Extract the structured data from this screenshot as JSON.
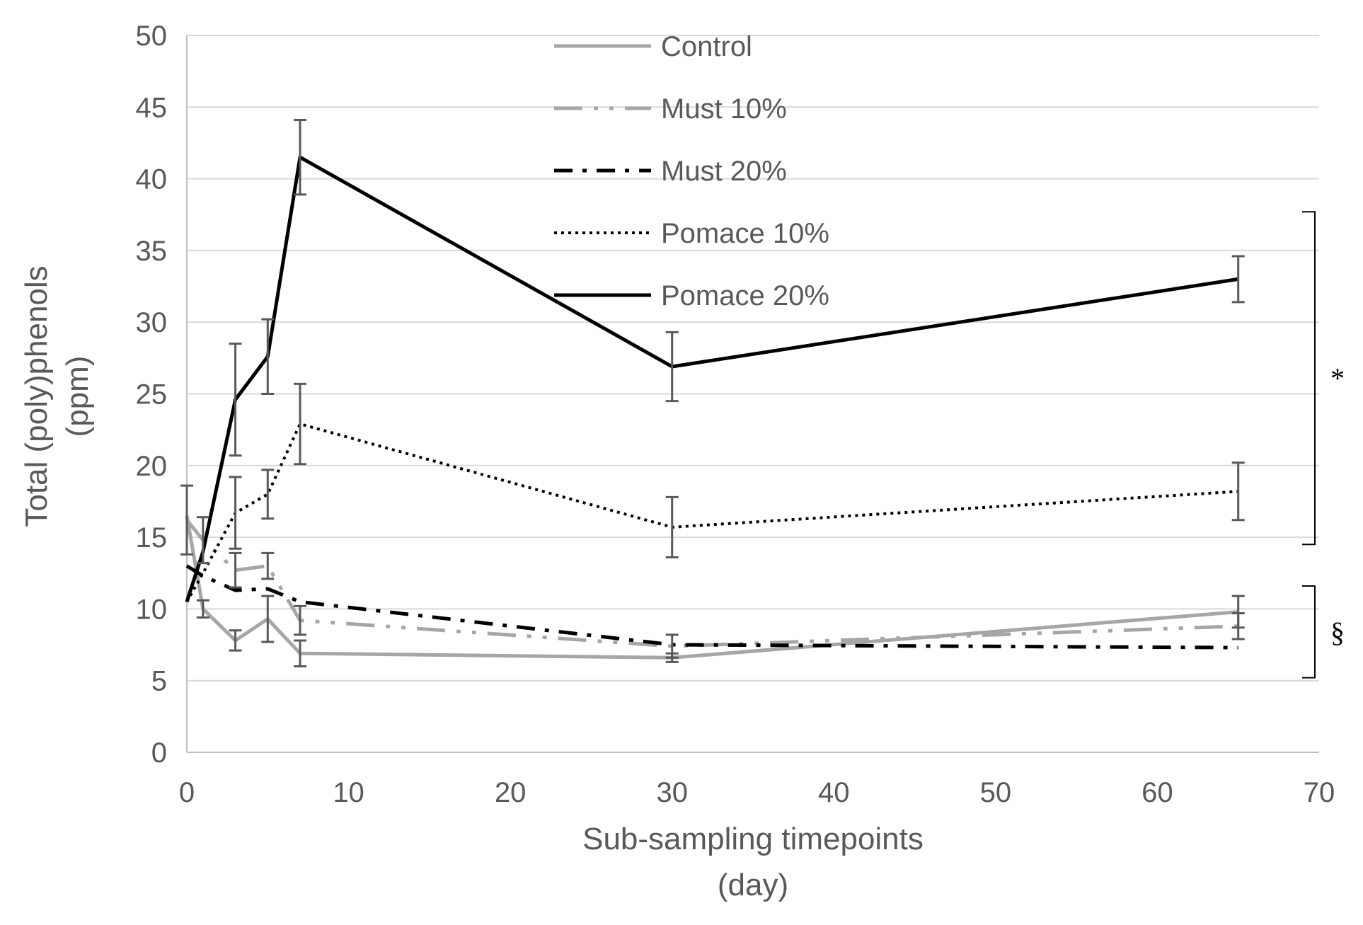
{
  "chart_data": {
    "type": "line",
    "title": "",
    "xlabel_lines": [
      "Sub-sampling timepoints",
      "(day)"
    ],
    "ylabel_lines": [
      "Total (poly)phenols",
      "(ppm)"
    ],
    "xlim": [
      0,
      70
    ],
    "ylim": [
      0,
      50
    ],
    "x_ticks": [
      0,
      10,
      20,
      30,
      40,
      50,
      60,
      70
    ],
    "y_ticks": [
      0,
      5,
      10,
      15,
      20,
      25,
      30,
      35,
      40,
      45,
      50
    ],
    "x_tick_labels": [
      "0",
      "10",
      "20",
      "30",
      "40",
      "50",
      "60",
      "70"
    ],
    "y_tick_labels": [
      "0",
      "5",
      "10",
      "15",
      "20",
      "25",
      "30",
      "35",
      "40",
      "45",
      "50"
    ],
    "grid": "horizontal",
    "legend_position": "top-center",
    "series": [
      {
        "name": "Control",
        "style": "solid",
        "color": "#a6a6a6",
        "x": [
          0,
          1,
          3,
          5,
          7,
          30,
          65
        ],
        "y": [
          16.5,
          10.0,
          7.8,
          9.3,
          6.9,
          6.6,
          9.8
        ],
        "err": [
          0.0,
          0.6,
          0.7,
          1.6,
          0.9,
          0.3,
          1.1
        ]
      },
      {
        "name": "Must 10%",
        "style": "long-dash-dot-dot",
        "color": "#a6a6a6",
        "x": [
          0,
          1,
          3,
          5,
          7,
          30,
          65
        ],
        "y": [
          16.2,
          14.8,
          12.7,
          13.0,
          9.2,
          7.4,
          8.8
        ],
        "err": [
          2.4,
          1.6,
          1.2,
          0.9,
          1.0,
          0.8,
          0.9
        ]
      },
      {
        "name": "Must 20%",
        "style": "dash-dot",
        "color": "#000000",
        "x": [
          0,
          1,
          3,
          5,
          7,
          30,
          65
        ],
        "y": [
          13.0,
          12.3,
          11.3,
          11.4,
          10.5,
          7.5,
          7.3
        ],
        "err": [
          0.0,
          0.0,
          0.0,
          0.0,
          0.0,
          0.0,
          0.0
        ]
      },
      {
        "name": "Pomace 10%",
        "style": "dotted",
        "color": "#000000",
        "x": [
          0,
          1,
          3,
          5,
          7,
          30,
          65
        ],
        "y": [
          10.5,
          12.5,
          16.7,
          18.0,
          22.9,
          15.7,
          18.2
        ],
        "err": [
          0.0,
          0.0,
          2.5,
          1.7,
          2.8,
          2.1,
          2.0
        ]
      },
      {
        "name": "Pomace 20%",
        "style": "solid",
        "color": "#000000",
        "x": [
          0,
          1,
          3,
          5,
          7,
          30,
          65
        ],
        "y": [
          10.5,
          14.0,
          24.6,
          27.6,
          41.5,
          26.9,
          33.0
        ],
        "err": [
          0.0,
          0.0,
          3.9,
          2.6,
          2.6,
          2.4,
          1.6
        ]
      }
    ],
    "brackets": [
      {
        "label": "*",
        "y_range": [
          14.5,
          37.7
        ]
      },
      {
        "label": "§",
        "y_range": [
          5.2,
          11.6
        ]
      }
    ]
  }
}
